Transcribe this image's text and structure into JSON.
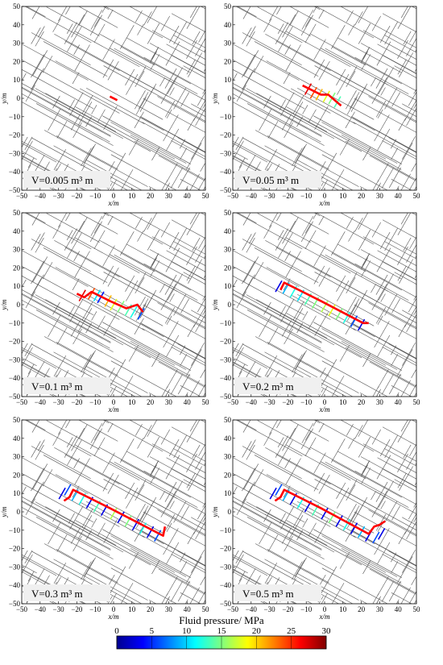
{
  "chart_data": [
    {
      "type": "network",
      "label_text": "V=0.005 m³ m",
      "xlabel": "x/m",
      "ylabel": "y/m",
      "xlim": [
        -50,
        50
      ],
      "ylim": [
        -50,
        50
      ],
      "x_ticks": [
        "−50",
        "−40",
        "−30",
        "−20",
        "−10",
        "0",
        "10",
        "20",
        "30",
        "40",
        "50"
      ],
      "y_ticks": [
        "50",
        "40",
        "30",
        "20",
        "10",
        "0",
        "−10",
        "−20",
        "−30",
        "−40",
        "−50"
      ],
      "main_path": [
        [
          -2,
          1
        ],
        [
          2,
          -1
        ]
      ],
      "branches": []
    },
    {
      "type": "network",
      "label_text": "V=0.05 m³ m",
      "xlabel": "x/m",
      "ylabel": "y/m",
      "xlim": [
        -50,
        50
      ],
      "ylim": [
        -50,
        50
      ],
      "x_ticks": [
        "−50",
        "−40",
        "−30",
        "−20",
        "−10",
        "0",
        "10",
        "20",
        "30",
        "40",
        "50"
      ],
      "y_ticks": [
        "50",
        "40",
        "30",
        "20",
        "10",
        "0",
        "−10",
        "−20",
        "−30",
        "−40",
        "−50"
      ],
      "main_path": [
        [
          -12,
          7
        ],
        [
          -2,
          2
        ],
        [
          2,
          2
        ],
        [
          9,
          -4
        ]
      ],
      "branches": [
        [
          -9,
          5,
          0.9
        ],
        [
          -6,
          3,
          0.8
        ],
        [
          -3,
          2,
          0.7
        ],
        [
          1,
          1,
          0.6
        ],
        [
          4,
          0,
          0.5
        ],
        [
          7,
          -2,
          0.45
        ]
      ]
    },
    {
      "type": "network",
      "label_text": "V=0.1 m³ m",
      "xlabel": "x/m",
      "ylabel": "y/m",
      "xlim": [
        -50,
        50
      ],
      "ylim": [
        -50,
        50
      ],
      "x_ticks": [
        "−50",
        "−40",
        "−30",
        "−20",
        "−10",
        "0",
        "10",
        "20",
        "30",
        "40",
        "50"
      ],
      "y_ticks": [
        "50",
        "40",
        "30",
        "20",
        "10",
        "0",
        "−10",
        "−20",
        "−30",
        "−40",
        "−50"
      ],
      "main_path": [
        [
          -20,
          6
        ],
        [
          -16,
          4
        ],
        [
          -12,
          7
        ],
        [
          -2,
          2
        ],
        [
          7,
          -2
        ],
        [
          10,
          -1
        ],
        [
          13,
          0
        ],
        [
          16,
          -4
        ]
      ],
      "branches": [
        [
          -17,
          5,
          0.9
        ],
        [
          -12,
          6,
          0.8
        ],
        [
          -7,
          4,
          0.15
        ],
        [
          -3,
          2,
          0.7
        ],
        [
          0,
          0,
          0.6
        ],
        [
          4,
          -1,
          0.5
        ],
        [
          8,
          -3,
          0.45
        ],
        [
          11,
          -4,
          0.4
        ],
        [
          15,
          -5,
          0.2
        ],
        [
          -9,
          5,
          0.35
        ]
      ]
    },
    {
      "type": "network",
      "label_text": "V=0.2 m³ m",
      "xlabel": "x/m",
      "ylabel": "y/m",
      "xlim": [
        -50,
        50
      ],
      "ylim": [
        -50,
        50
      ],
      "x_ticks": [
        "−50",
        "−40",
        "−30",
        "−20",
        "−10",
        "0",
        "10",
        "20",
        "30",
        "40",
        "50"
      ],
      "y_ticks": [
        "50",
        "40",
        "30",
        "20",
        "10",
        "0",
        "−10",
        "−20",
        "−30",
        "−40",
        "−50"
      ],
      "main_path": [
        [
          -24,
          8
        ],
        [
          -22,
          12
        ],
        [
          -2,
          2
        ],
        [
          21,
          -10
        ],
        [
          24,
          -10
        ]
      ],
      "branches": [
        [
          -25,
          10,
          0.1
        ],
        [
          -21,
          9,
          0.3
        ],
        [
          -17,
          7,
          0.4
        ],
        [
          -13,
          5,
          0.35
        ],
        [
          -9,
          3,
          0.45
        ],
        [
          -5,
          1,
          0.5
        ],
        [
          0,
          -1,
          0.55
        ],
        [
          4,
          -3,
          0.6
        ],
        [
          8,
          -5,
          0.5
        ],
        [
          12,
          -7,
          0.4
        ],
        [
          16,
          -9,
          0.2
        ],
        [
          20,
          -11,
          0.1
        ]
      ]
    },
    {
      "type": "network",
      "label_text": "V=0.3 m³ m",
      "xlabel": "x/m",
      "ylabel": "y/m",
      "xlim": [
        -50,
        50
      ],
      "ylim": [
        -50,
        50
      ],
      "x_ticks": [
        "−50",
        "−40",
        "−30",
        "−20",
        "−10",
        "0",
        "10",
        "20",
        "30",
        "40",
        "50"
      ],
      "y_ticks": [
        "50",
        "40",
        "30",
        "20",
        "10",
        "0",
        "−10",
        "−20",
        "−30",
        "−40",
        "−50"
      ],
      "main_path": [
        [
          -27,
          6
        ],
        [
          -24,
          8
        ],
        [
          -22,
          12
        ],
        [
          -2,
          2
        ],
        [
          27,
          -13
        ],
        [
          28,
          -8
        ]
      ],
      "branches": [
        [
          -28,
          10,
          0.1
        ],
        [
          -25,
          12,
          0.2
        ],
        [
          -21,
          9,
          0.3
        ],
        [
          -17,
          7,
          0.4
        ],
        [
          -13,
          5,
          0.1
        ],
        [
          -9,
          3,
          0.45
        ],
        [
          -5,
          1,
          0.1
        ],
        [
          0,
          -1,
          0.55
        ],
        [
          4,
          -3,
          0.1
        ],
        [
          8,
          -5,
          0.5
        ],
        [
          12,
          -7,
          0.1
        ],
        [
          16,
          -9,
          0.4
        ],
        [
          20,
          -11,
          0.1
        ],
        [
          24,
          -13,
          0.2
        ]
      ]
    },
    {
      "type": "network",
      "label_text": "V=0.5 m³ m",
      "xlabel": "x/m",
      "ylabel": "y/m",
      "xlim": [
        -50,
        50
      ],
      "ylim": [
        -50,
        50
      ],
      "x_ticks": [
        "−50",
        "−40",
        "−30",
        "−20",
        "−10",
        "0",
        "10",
        "20",
        "30",
        "40",
        "50"
      ],
      "y_ticks": [
        "50",
        "40",
        "30",
        "20",
        "10",
        "0",
        "−10",
        "−20",
        "−30",
        "−40",
        "−50"
      ],
      "main_path": [
        [
          -27,
          6
        ],
        [
          -24,
          8
        ],
        [
          -22,
          12
        ],
        [
          -2,
          2
        ],
        [
          24,
          -12
        ],
        [
          27,
          -8
        ],
        [
          30,
          -7
        ],
        [
          33,
          -5
        ]
      ],
      "branches": [
        [
          -28,
          10,
          0.1
        ],
        [
          -25,
          12,
          0.2
        ],
        [
          -21,
          9,
          0.3
        ],
        [
          -17,
          7,
          0.1
        ],
        [
          -13,
          5,
          0.4
        ],
        [
          -9,
          3,
          0.1
        ],
        [
          -5,
          1,
          0.45
        ],
        [
          0,
          -1,
          0.1
        ],
        [
          4,
          -3,
          0.5
        ],
        [
          8,
          -5,
          0.1
        ],
        [
          12,
          -7,
          0.4
        ],
        [
          16,
          -9,
          0.1
        ],
        [
          20,
          -11,
          0.3
        ],
        [
          24,
          -13,
          0.1
        ],
        [
          28,
          -14,
          0.2
        ],
        [
          31,
          -12,
          0.1
        ]
      ]
    }
  ],
  "colorbar": {
    "title": "Fluid pressure/ MPa",
    "ticks": [
      "0",
      "5",
      "10",
      "15",
      "20",
      "25",
      "30"
    ],
    "range": [
      0,
      30
    ],
    "colormap": "jet"
  },
  "colors": {
    "main_path": "#ff0000",
    "fracture": "#555555",
    "frame": "#000000",
    "label_box": "#f0f0f0"
  }
}
